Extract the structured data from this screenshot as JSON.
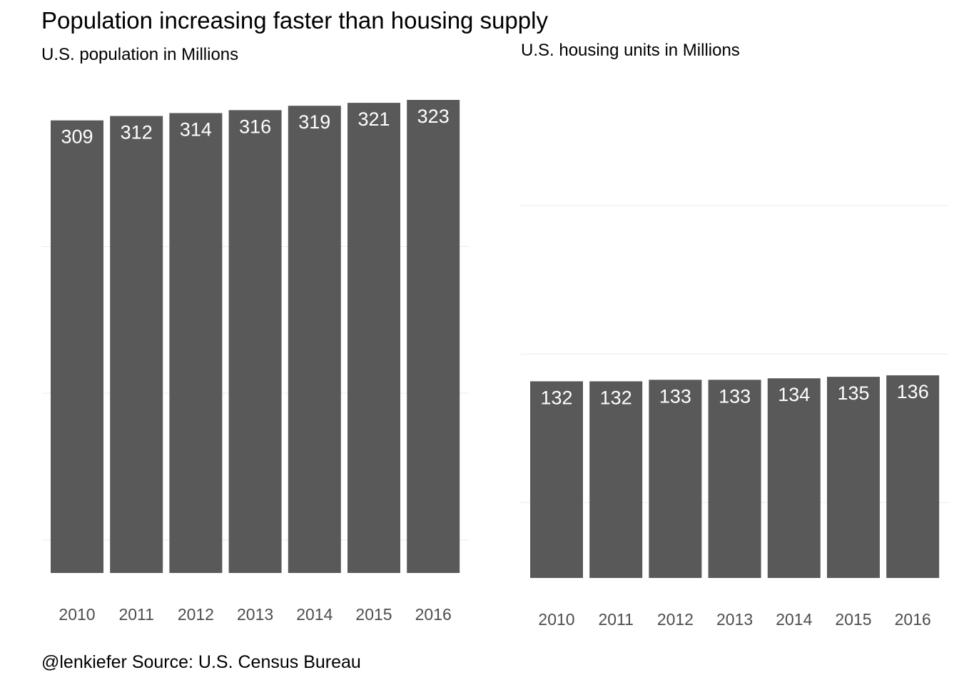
{
  "title": "Population increasing faster than housing supply",
  "caption": "@lenkiefer Source: U.S. Census Bureau",
  "colors": {
    "bar": "#595959",
    "label": "#ffffff",
    "grid": "#ebebeb",
    "tick": "#4d4d4d"
  },
  "chart_data": [
    {
      "type": "bar",
      "subtitle": "U.S. population in Millions",
      "categories": [
        "2010",
        "2011",
        "2012",
        "2013",
        "2014",
        "2015",
        "2016"
      ],
      "values": [
        309,
        312,
        314,
        316,
        319,
        321,
        323
      ],
      "labels": [
        "309",
        "312",
        "314",
        "316",
        "319",
        "321",
        "323"
      ],
      "ylim": [
        0,
        323
      ],
      "grid": true,
      "y_ticks_visible": false
    },
    {
      "type": "bar",
      "subtitle": "U.S. housing units in Millions",
      "categories": [
        "2010",
        "2011",
        "2012",
        "2013",
        "2014",
        "2015",
        "2016"
      ],
      "values": [
        132,
        132,
        133,
        133,
        134,
        135,
        136
      ],
      "labels": [
        "132",
        "132",
        "133",
        "133",
        "134",
        "135",
        "136"
      ],
      "ylim": [
        0,
        136
      ],
      "grid": true,
      "y_ticks_visible": false
    }
  ]
}
